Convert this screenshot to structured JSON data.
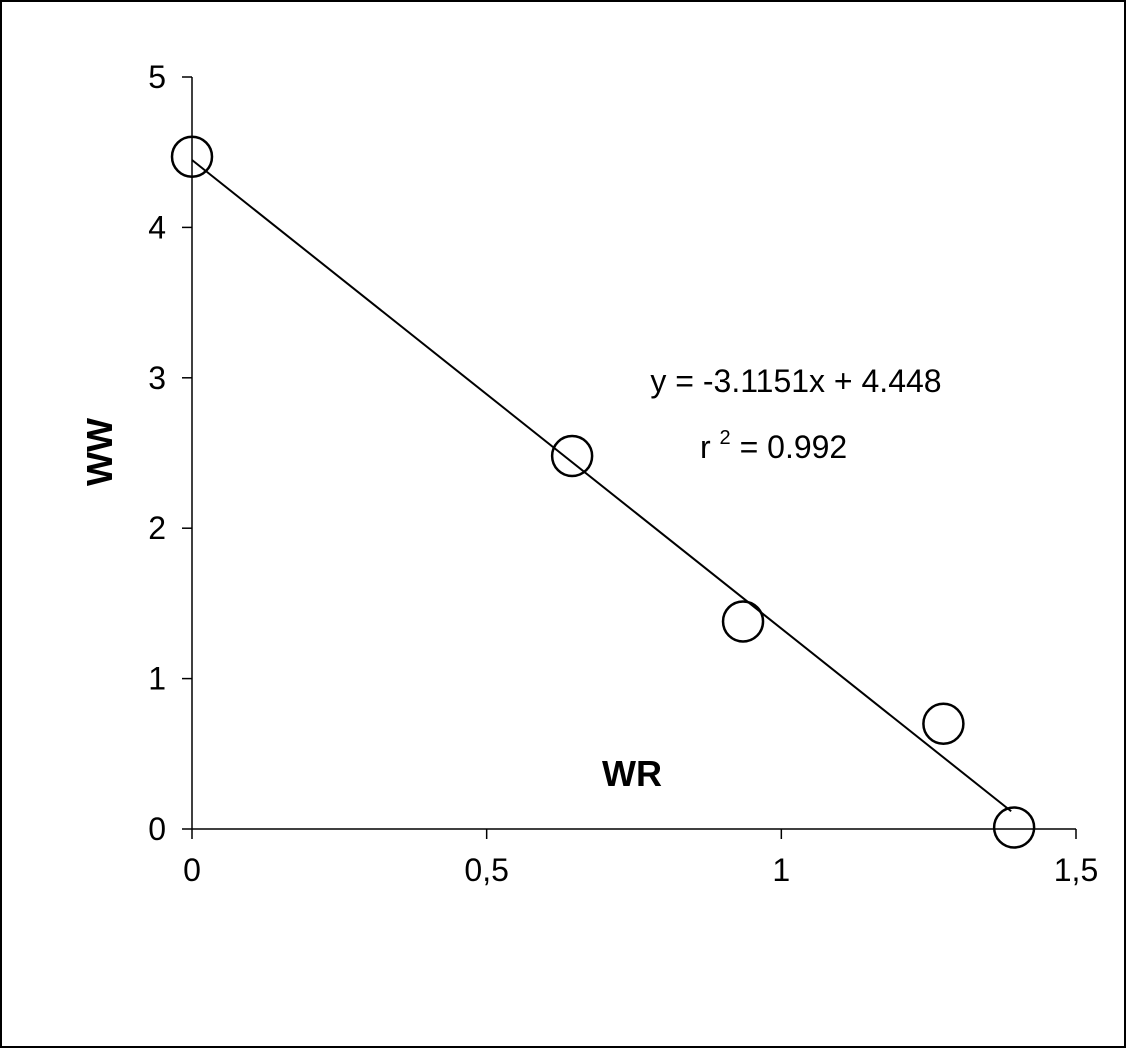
{
  "chart_data": {
    "type": "scatter",
    "xlabel": "WR",
    "ylabel": "WW",
    "xlim": [
      0,
      1.5
    ],
    "ylim": [
      0,
      5
    ],
    "x_ticks": [
      0,
      0.5,
      1,
      1.5
    ],
    "x_tick_labels": [
      "0",
      "0,5",
      "1",
      "1,5"
    ],
    "y_ticks": [
      0,
      1,
      2,
      3,
      4,
      5
    ],
    "y_tick_labels": [
      "0",
      "1",
      "2",
      "3",
      "4",
      "5"
    ],
    "grid": false,
    "legend": "none",
    "series": [
      {
        "marker": "open-circle",
        "points": [
          {
            "x": 0.0,
            "y": 4.47
          },
          {
            "x": 0.645,
            "y": 2.48
          },
          {
            "x": 0.935,
            "y": 1.38
          },
          {
            "x": 1.275,
            "y": 0.7
          },
          {
            "x": 1.395,
            "y": 0.01
          }
        ]
      }
    ],
    "trendline": {
      "slope": -3.1151,
      "intercept": 4.448,
      "x_range": [
        0,
        1.39
      ]
    },
    "annotation": {
      "equation": "y = -3.1151x + 4.448",
      "r2_prefix": "r",
      "r2_exponent": "2",
      "r2_suffix": " = 0.992"
    },
    "colors": {
      "line": "#000000",
      "marker_edge": "#000000",
      "marker_fill": "#ffffff"
    }
  }
}
